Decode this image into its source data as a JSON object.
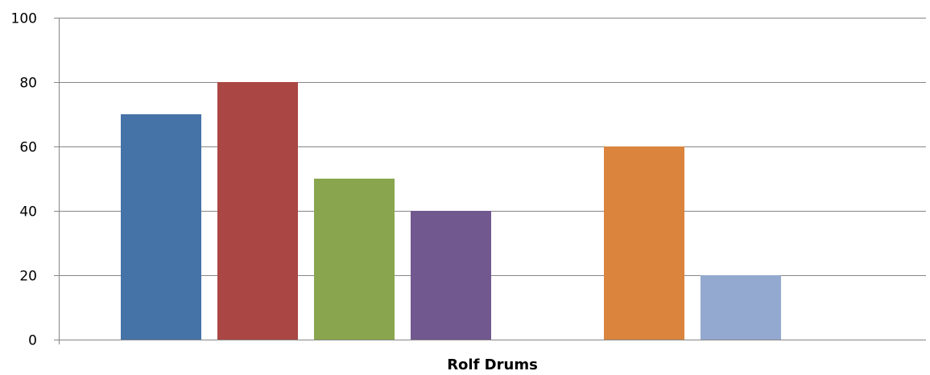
{
  "chart_data": {
    "type": "bar",
    "categories": [
      "Rolf Drums"
    ],
    "series": [
      {
        "values": [
          70
        ],
        "color": "#4572A7"
      },
      {
        "values": [
          80
        ],
        "color": "#AA4643"
      },
      {
        "values": [
          50
        ],
        "color": "#89A54E"
      },
      {
        "values": [
          40
        ],
        "color": "#71588F"
      },
      {
        "values": [
          0
        ],
        "color": "#4198AF"
      },
      {
        "values": [
          60
        ],
        "color": "#DB843D"
      },
      {
        "values": [
          20
        ],
        "color": "#93A9CF"
      },
      {
        "values": [
          0
        ],
        "color": "#D19392"
      }
    ],
    "ylim": [
      0,
      100
    ],
    "yticks": [
      "0",
      "20",
      "40",
      "60",
      "80",
      "100"
    ],
    "grid": true,
    "gridline_color": "#868686",
    "title": "",
    "xlabel": "",
    "ylabel": ""
  }
}
